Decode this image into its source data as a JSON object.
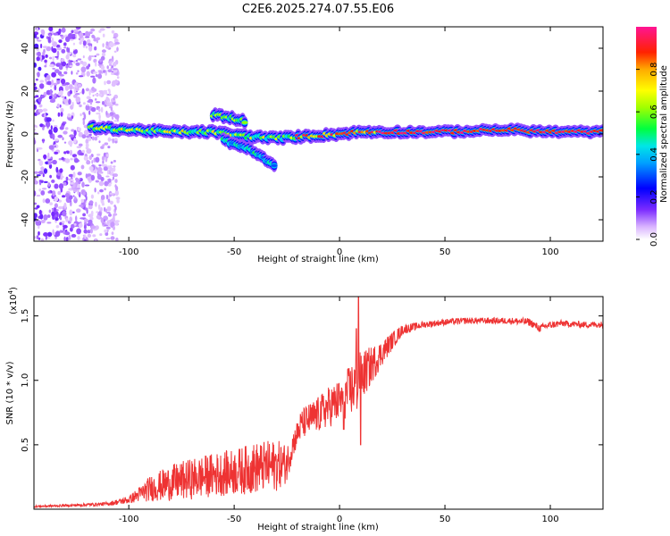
{
  "title": "C2E6.2025.274.07.55.E06",
  "chart_data": [
    {
      "type": "heatmap",
      "name": "spectrogram",
      "xlabel": "Height of straight line (km)",
      "ylabel": "Frequency (Hz)",
      "xlim": [
        -145,
        125
      ],
      "ylim": [
        -50,
        50
      ],
      "xticks": [
        -100,
        -50,
        0,
        50,
        100
      ],
      "yticks": [
        -40,
        -20,
        0,
        20,
        40
      ],
      "colorbar": {
        "label": "Normalized spectral amplitude",
        "range": [
          0,
          1
        ],
        "ticks": [
          "0.0",
          "0.2",
          "0.4",
          "0.6",
          "0.8"
        ],
        "tick_values": [
          0.0,
          0.2,
          0.4,
          0.6,
          0.8
        ]
      },
      "features": [
        {
          "description": "scattered low-amplitude noise",
          "x_range": [
            -145,
            -105
          ],
          "freq_range": [
            -50,
            50
          ],
          "amplitude": 0.2
        },
        {
          "description": "main branch",
          "points": [
            [
              -118,
              3
            ],
            [
              -100,
              2
            ],
            [
              -80,
              1
            ],
            [
              -60,
              1
            ],
            [
              -45,
              -1
            ],
            [
              -30,
              -2
            ],
            [
              -15,
              -1
            ],
            [
              0,
              0
            ],
            [
              10,
              1
            ],
            [
              25,
              1
            ],
            [
              50,
              1
            ],
            [
              80,
              2
            ],
            [
              100,
              1
            ],
            [
              125,
              1
            ]
          ]
        },
        {
          "description": "upper branch",
          "points": [
            [
              -60,
              9
            ],
            [
              -53,
              8
            ],
            [
              -45,
              6
            ]
          ]
        },
        {
          "description": "lower branch",
          "points": [
            [
              -55,
              -3
            ],
            [
              -45,
              -6
            ],
            [
              -38,
              -10
            ],
            [
              -31,
              -15
            ]
          ]
        }
      ]
    },
    {
      "type": "line",
      "name": "snr",
      "xlabel": "Height of straight line (km)",
      "ylabel": "SNR (10 * v/v)",
      "yscale_label": "(x10",
      "yscale_exp": "4",
      "yscale_close": ")",
      "xlim": [
        -145,
        125
      ],
      "ylim": [
        0,
        1.65
      ],
      "xticks": [
        -100,
        -50,
        0,
        50,
        100
      ],
      "yticks": [
        0.5,
        1.0,
        1.5
      ],
      "ytick_labels": [
        "0.5",
        "1.0",
        "1.5"
      ],
      "color": "#ee3333",
      "envelope": {
        "x": [
          -145,
          -125,
          -110,
          -100,
          -95,
          -90,
          -80,
          -70,
          -60,
          -50,
          -40,
          -30,
          -25,
          -22,
          -18,
          -10,
          -5,
          0,
          5,
          8,
          10,
          15,
          20,
          25,
          30,
          40,
          50,
          60,
          70,
          80,
          90,
          95,
          98,
          105,
          115,
          125
        ],
        "mean": [
          0.02,
          0.03,
          0.04,
          0.07,
          0.11,
          0.15,
          0.19,
          0.22,
          0.25,
          0.27,
          0.3,
          0.32,
          0.34,
          0.5,
          0.65,
          0.72,
          0.78,
          0.82,
          0.9,
          0.95,
          1.0,
          1.1,
          1.2,
          1.3,
          1.39,
          1.43,
          1.45,
          1.46,
          1.46,
          1.46,
          1.45,
          1.4,
          1.42,
          1.44,
          1.43,
          1.43
        ],
        "amp": [
          0.008,
          0.01,
          0.015,
          0.03,
          0.06,
          0.1,
          0.14,
          0.16,
          0.17,
          0.18,
          0.2,
          0.2,
          0.15,
          0.1,
          0.12,
          0.14,
          0.16,
          0.17,
          0.2,
          0.25,
          0.2,
          0.15,
          0.1,
          0.07,
          0.04,
          0.025,
          0.025,
          0.025,
          0.025,
          0.025,
          0.03,
          0.03,
          0.03,
          0.025,
          0.025,
          0.025
        ]
      },
      "spikes": [
        [
          9,
          1.65
        ],
        [
          10,
          0.5
        ],
        [
          8,
          1.4
        ],
        [
          2,
          0.62
        ]
      ]
    }
  ]
}
